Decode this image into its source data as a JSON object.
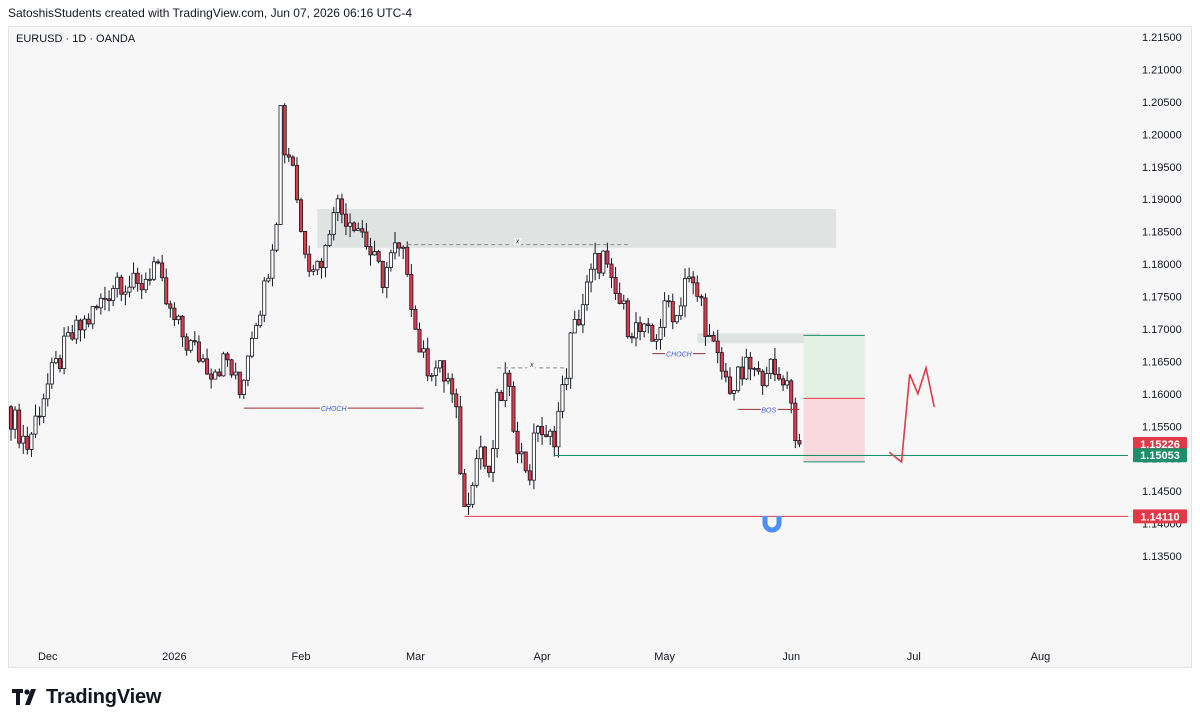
{
  "header": {
    "credit": "SatoshisStudents created with TradingView.com, Jun 07, 2026 06:16 UTC-4"
  },
  "symbol_line": "EURUSD · 1D · OANDA",
  "footer": {
    "brand": "TradingView"
  },
  "colors": {
    "up": "#ffffff",
    "down": "#e03a4a",
    "wick": "#131722",
    "demand_zone": "#dfe3e2",
    "target_zone": "#e3f1e4",
    "stop_zone": "#f9d9dd",
    "structure_line": "#9b2c36",
    "label_text": "#3b5bdb",
    "red_tag": "#e03a4a",
    "green_tag": "#1b8f6a"
  },
  "annotations": {
    "choch_1": "CHOCH",
    "choch_2": "CHOCH",
    "bos": "BOS",
    "x_1": "x",
    "x_2": "x"
  },
  "price_tags": {
    "current": "1.15226",
    "entry": "1.15053",
    "support": "1.14110"
  },
  "chart_data": {
    "type": "candlestick",
    "symbol": "EURUSD",
    "timeframe": "1D",
    "exchange": "OANDA",
    "ylim": [
      1.135,
      1.215
    ],
    "yticks": [
      "1.21500",
      "1.21000",
      "1.20500",
      "1.20000",
      "1.19500",
      "1.19000",
      "1.18500",
      "1.18000",
      "1.17500",
      "1.17000",
      "1.16500",
      "1.16000",
      "1.15500",
      "1.15000",
      "1.14500",
      "1.14000",
      "1.13500"
    ],
    "xticks": [
      {
        "label": "Dec",
        "bar": 9
      },
      {
        "label": "2026",
        "bar": 40
      },
      {
        "label": "Feb",
        "bar": 71
      },
      {
        "label": "Mar",
        "bar": 99
      },
      {
        "label": "Apr",
        "bar": 130
      },
      {
        "label": "May",
        "bar": 160
      },
      {
        "label": "Jun",
        "bar": 191
      },
      {
        "label": "Jul",
        "bar": 221
      },
      {
        "label": "Aug",
        "bar": 252
      }
    ],
    "anchors": [
      [
        0,
        1.158
      ],
      [
        5,
        1.152
      ],
      [
        9,
        1.16
      ],
      [
        15,
        1.168
      ],
      [
        22,
        1.173
      ],
      [
        27,
        1.178
      ],
      [
        32,
        1.176
      ],
      [
        36,
        1.18
      ],
      [
        40,
        1.172
      ],
      [
        44,
        1.168
      ],
      [
        50,
        1.164
      ],
      [
        54,
        1.165
      ],
      [
        57,
        1.16
      ],
      [
        60,
        1.17
      ],
      [
        63,
        1.176
      ],
      [
        66,
        1.188
      ],
      [
        67,
        1.204
      ],
      [
        68,
        1.198
      ],
      [
        70,
        1.196
      ],
      [
        72,
        1.185
      ],
      [
        74,
        1.181
      ],
      [
        76,
        1.18
      ],
      [
        78,
        1.182
      ],
      [
        80,
        1.19
      ],
      [
        82,
        1.188
      ],
      [
        85,
        1.187
      ],
      [
        87,
        1.185
      ],
      [
        90,
        1.18
      ],
      [
        92,
        1.178
      ],
      [
        95,
        1.182
      ],
      [
        98,
        1.18
      ],
      [
        100,
        1.17
      ],
      [
        102,
        1.165
      ],
      [
        105,
        1.164
      ],
      [
        108,
        1.162
      ],
      [
        110,
        1.156
      ],
      [
        112,
        1.142
      ],
      [
        114,
        1.148
      ],
      [
        116,
        1.152
      ],
      [
        118,
        1.146
      ],
      [
        120,
        1.158
      ],
      [
        122,
        1.162
      ],
      [
        124,
        1.156
      ],
      [
        126,
        1.15
      ],
      [
        128,
        1.148
      ],
      [
        130,
        1.156
      ],
      [
        132,
        1.152
      ],
      [
        134,
        1.154
      ],
      [
        136,
        1.16
      ],
      [
        138,
        1.168
      ],
      [
        140,
        1.172
      ],
      [
        142,
        1.176
      ],
      [
        144,
        1.18
      ],
      [
        146,
        1.181
      ],
      [
        148,
        1.176
      ],
      [
        150,
        1.174
      ],
      [
        152,
        1.171
      ],
      [
        154,
        1.17
      ],
      [
        156,
        1.169
      ],
      [
        158,
        1.168
      ],
      [
        160,
        1.171
      ],
      [
        162,
        1.174
      ],
      [
        164,
        1.172
      ],
      [
        166,
        1.178
      ],
      [
        168,
        1.176
      ],
      [
        170,
        1.174
      ],
      [
        172,
        1.168
      ],
      [
        174,
        1.165
      ],
      [
        176,
        1.162
      ],
      [
        178,
        1.161
      ],
      [
        180,
        1.163
      ],
      [
        182,
        1.164
      ],
      [
        184,
        1.162
      ],
      [
        186,
        1.165
      ],
      [
        188,
        1.162
      ],
      [
        190,
        1.163
      ],
      [
        192,
        1.16
      ],
      [
        193,
        1.1525
      ]
    ],
    "n_bars": 194,
    "zones": [
      {
        "name": "supply-zone",
        "x0": 75,
        "x1": 202,
        "y0": 1.1825,
        "y1": 1.1885
      },
      {
        "name": "fvg-zone",
        "x0": 168,
        "x1": 198,
        "y0": 1.1678,
        "y1": 1.1693
      },
      {
        "name": "target-zone",
        "x0": 194,
        "x1": 209,
        "y0": 1.1593,
        "y1": 1.169
      },
      {
        "name": "stop-zone",
        "x0": 194,
        "x1": 209,
        "y0": 1.1495,
        "y1": 1.1593
      }
    ],
    "lines": [
      {
        "name": "choch-line-1",
        "x0": 57,
        "x1": 101,
        "y": 1.1578,
        "color": "#9b2c36",
        "label_key": "choch_1"
      },
      {
        "name": "choch-line-2",
        "x0": 157,
        "x1": 170,
        "y": 1.1662,
        "color": "#9b2c36",
        "label_key": "choch_2"
      },
      {
        "name": "bos-line",
        "x0": 178,
        "x1": 193,
        "y": 1.1576,
        "color": "#9b2c36",
        "label_key": "bos"
      },
      {
        "name": "x-line-1",
        "x0": 97,
        "x1": 151,
        "y": 1.183,
        "color": "#8a8a8a",
        "dashed": true,
        "label_key": "x_1"
      },
      {
        "name": "x-line-2",
        "x0": 119,
        "x1": 136,
        "y": 1.164,
        "color": "#8a8a8a",
        "dashed": true,
        "label_key": "x_2"
      },
      {
        "name": "entry-line",
        "x0": 133,
        "x1": 290,
        "y": 1.1505,
        "color": "#1b8f6a"
      },
      {
        "name": "support-line",
        "x0": 111,
        "x1": 290,
        "y": 1.1411,
        "color": "#e03a4a"
      }
    ],
    "projection": [
      [
        215,
        1.151
      ],
      [
        218,
        1.1495
      ],
      [
        220,
        1.163
      ],
      [
        222,
        1.16
      ],
      [
        224,
        1.164
      ],
      [
        226,
        1.158
      ]
    ]
  }
}
